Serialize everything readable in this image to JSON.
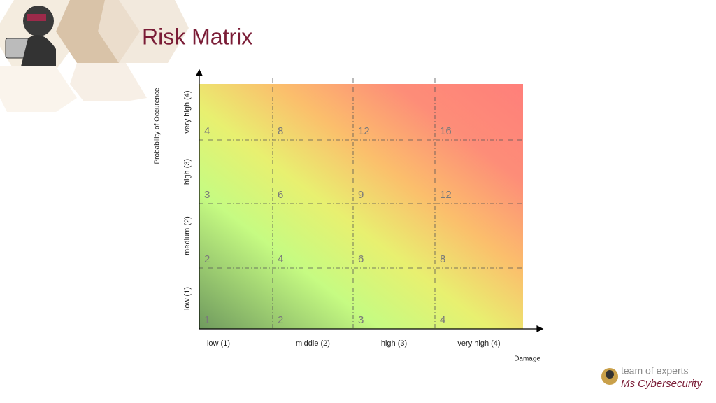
{
  "title": "Risk Matrix",
  "y_axis": {
    "label": "Probability of Occurence",
    "levels": [
      "low (1)",
      "medium (2)",
      "high (3)",
      "very high (4)"
    ]
  },
  "x_axis": {
    "label": "Damage",
    "levels": [
      "low (1)",
      "middle (2)",
      "high (3)",
      "very high (4)"
    ]
  },
  "matrix": {
    "rows": [
      [
        1,
        2,
        3,
        4
      ],
      [
        2,
        4,
        6,
        8
      ],
      [
        3,
        6,
        9,
        12
      ],
      [
        4,
        8,
        12,
        16
      ]
    ]
  },
  "logo": {
    "line1": "team of experts",
    "line2": "Ms Cybersecurity"
  }
}
